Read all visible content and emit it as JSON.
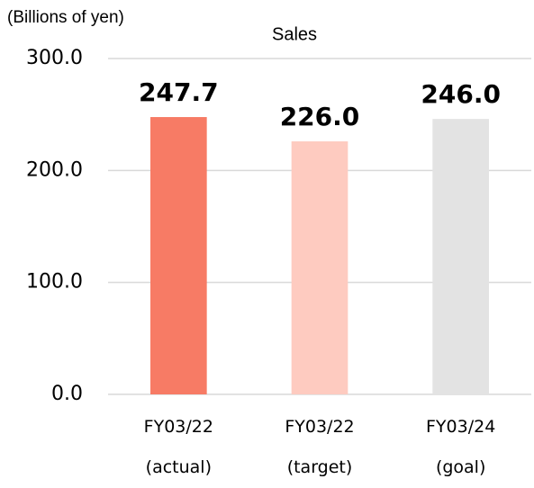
{
  "chart_data": {
    "type": "bar",
    "title": "Sales",
    "y_label": "(Billions of yen)",
    "categories": [
      "FY03/22 (actual)",
      "FY03/22 (target)",
      "FY03/24 (goal)"
    ],
    "values": [
      247.7,
      226.0,
      246.0
    ],
    "value_labels": [
      "247.7",
      "226.0",
      "246.0"
    ],
    "colors": [
      "#f77b65",
      "#fecbc0",
      "#e3e3e3"
    ],
    "ylim": [
      0,
      300
    ],
    "yticks": [
      {
        "value": 0,
        "label": "0.0"
      },
      {
        "value": 100,
        "label": "100.0"
      },
      {
        "value": 200,
        "label": "200.0"
      },
      {
        "value": 300,
        "label": "300.0"
      }
    ],
    "grid": true
  }
}
